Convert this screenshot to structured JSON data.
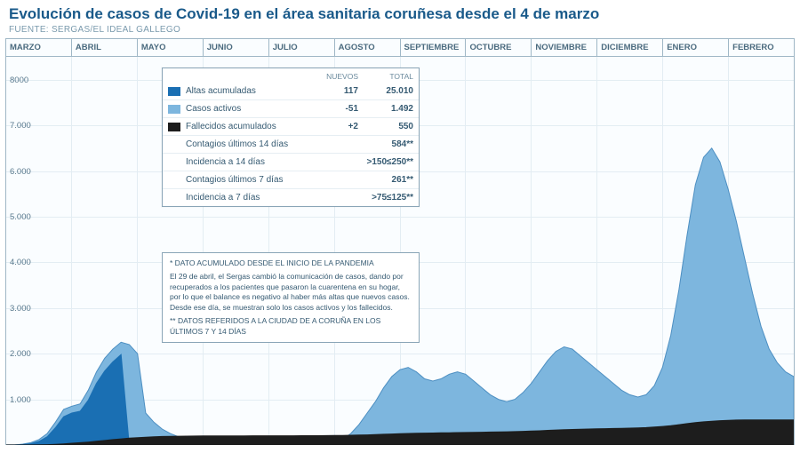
{
  "title": "Evolución de casos de Covid-19 en el área sanitaria coruñesa desde el 4 de marzo",
  "source": "FUENTE: SERGAS/EL IDEAL GALLEGO",
  "months": [
    "MARZO",
    "ABRIL",
    "MAYO",
    "JUNIO",
    "JULIO",
    "AGOSTO",
    "SEPTIEMBRE",
    "OCTUBRE",
    "NOVIEMBRE",
    "DICIEMBRE",
    "ENERO",
    "FEBRERO"
  ],
  "y_ticks": [
    1000,
    2000,
    3000,
    4000,
    5000,
    6000,
    7000,
    8000
  ],
  "y_tick_labels": [
    "1.000",
    "2.000",
    "3.000",
    "4.000",
    "5.000",
    "6.000",
    "7.000",
    "8000"
  ],
  "y_max": 8500,
  "colors": {
    "active": "#7db6de",
    "active_line": "#4d8fc2",
    "recovered": "#1a6fb3",
    "deceased": "#1d1d1d",
    "grid": "#e3edf3",
    "border": "#9fb7c6",
    "bg": "#fafdff"
  },
  "legend": {
    "head_new": "NUEVOS",
    "head_total": "TOTAL",
    "rows_color": [
      {
        "swatch": "#1a6fb3",
        "label": "Altas acumuladas",
        "new": "117",
        "total": "25.010"
      },
      {
        "swatch": "#7db6de",
        "label": "Casos activos",
        "new": "-51",
        "total": "1.492"
      },
      {
        "swatch": "#1d1d1d",
        "label": "Fallecidos acumulados",
        "new": "+2",
        "total": "550"
      }
    ],
    "rows_plain": [
      {
        "label": "Contagios últimos 14 días",
        "total": "584**"
      },
      {
        "label": "Incidencia a 14 días",
        "total": ">150≤250**"
      },
      {
        "label": "Contagios últimos 7 días",
        "total": "261**"
      },
      {
        "label": "Incidencia a 7 días",
        "total": ">75≤125**"
      }
    ]
  },
  "notes": {
    "line1": "* DATO ACUMULADO DESDE EL INICIO DE LA PANDEMIA",
    "line2": "El 29 de abril, el Sergas cambió la comunicación de casos, dando por recuperados a los pacientes que pasaron la cuarentena en su hogar, por lo que el balance es negativo al haber más altas que nuevos casos. Desde ese día, se muestran solo los casos activos y los fallecidos.",
    "line3": "** DATOS REFERIDOS A LA CIUDAD DE A CORUÑA EN LOS ÚLTIMOS 7 Y 14 DÍAS"
  },
  "series": {
    "active": [
      0,
      0,
      20,
      50,
      120,
      250,
      500,
      780,
      850,
      900,
      1200,
      1600,
      1900,
      2100,
      2250,
      2200,
      2000,
      700,
      500,
      350,
      250,
      180,
      140,
      120,
      100,
      90,
      80,
      75,
      70,
      65,
      60,
      58,
      56,
      55,
      55,
      56,
      58,
      60,
      65,
      70,
      80,
      120,
      250,
      450,
      700,
      950,
      1250,
      1500,
      1650,
      1700,
      1600,
      1450,
      1400,
      1450,
      1550,
      1600,
      1550,
      1400,
      1250,
      1100,
      1000,
      950,
      1000,
      1150,
      1350,
      1600,
      1850,
      2050,
      2150,
      2100,
      1950,
      1800,
      1650,
      1500,
      1350,
      1200,
      1100,
      1050,
      1100,
      1300,
      1700,
      2400,
      3400,
      4600,
      5700,
      6300,
      6500,
      6200,
      5600,
      4900,
      4100,
      3300,
      2600,
      2100,
      1800,
      1600,
      1500
    ],
    "recovered": [
      0,
      0,
      10,
      30,
      80,
      180,
      380,
      620,
      700,
      740,
      980,
      1350,
      1620,
      1820,
      1980,
      0,
      0,
      0,
      0,
      0,
      0,
      0,
      0,
      0,
      0,
      0,
      0,
      0,
      0,
      0,
      0,
      0,
      0,
      0,
      0,
      0,
      0,
      0,
      0,
      0,
      0,
      0,
      0,
      0,
      0,
      0,
      0,
      0,
      0,
      0,
      0,
      0,
      0,
      0,
      0,
      0,
      0,
      0,
      0,
      0,
      0,
      0,
      0,
      0,
      0,
      0,
      0,
      0,
      0,
      0,
      0,
      0,
      0,
      0,
      0,
      0,
      0,
      0,
      0,
      0,
      0,
      0,
      0,
      0,
      0,
      0,
      0,
      0,
      0,
      0,
      0,
      0,
      0,
      0,
      0,
      0,
      0
    ],
    "deceased": [
      0,
      0,
      1,
      2,
      4,
      8,
      15,
      25,
      38,
      50,
      65,
      82,
      100,
      118,
      135,
      150,
      162,
      172,
      180,
      186,
      190,
      193,
      195,
      197,
      198,
      199,
      200,
      200,
      201,
      201,
      202,
      202,
      202,
      203,
      203,
      203,
      204,
      204,
      205,
      206,
      208,
      210,
      213,
      217,
      222,
      228,
      235,
      242,
      248,
      253,
      257,
      260,
      263,
      266,
      269,
      272,
      275,
      278,
      281,
      284,
      287,
      290,
      294,
      299,
      305,
      312,
      320,
      328,
      335,
      341,
      346,
      350,
      354,
      358,
      362,
      366,
      370,
      375,
      382,
      392,
      406,
      424,
      445,
      468,
      490,
      508,
      522,
      532,
      540,
      546,
      549,
      550,
      550,
      550,
      550,
      550,
      550
    ]
  }
}
